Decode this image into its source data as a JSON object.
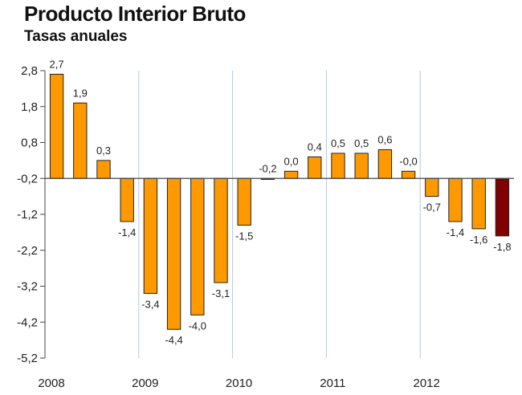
{
  "chart_data": {
    "type": "bar",
    "title": "Producto Interior Bruto",
    "subtitle": "Tasas anuales",
    "yticks": [
      "2,8",
      "1,8",
      "0,8",
      "-0,2",
      "-1,2",
      "-2,2",
      "-3,2",
      "-4,2",
      "-5,2"
    ],
    "ytick_values": [
      2.8,
      1.8,
      0.8,
      -0.2,
      -1.2,
      -2.2,
      -3.2,
      -4.2,
      -5.2
    ],
    "ylim": [
      -5.2,
      2.8
    ],
    "baseline": -0.2,
    "year_labels": [
      "2008",
      "2009",
      "2010",
      "2011",
      "2012"
    ],
    "values": [
      2.7,
      1.9,
      0.3,
      -1.4,
      -3.4,
      -4.4,
      -4.0,
      -3.1,
      -1.5,
      -0.2,
      0.0,
      0.4,
      0.5,
      0.5,
      0.6,
      -0.0,
      -0.7,
      -1.4,
      -1.6,
      -1.8
    ],
    "labels": [
      "2,7",
      "1,9",
      "0,3",
      "-1,4",
      "-3,4",
      "-4,4",
      "-4,0",
      "-3,1",
      "-1,5",
      "-0,2",
      "0,0",
      "0,4",
      "0,5",
      "0,5",
      "0,6",
      "-0,0",
      "-0,7",
      "-1,4",
      "-1,6",
      "-1,8"
    ],
    "colors": {
      "bar": "#FF9900",
      "highlight": "#800000",
      "outline": "#222222"
    },
    "highlight_index": 19,
    "grid": "vertical-year-separators",
    "legend": "none"
  }
}
